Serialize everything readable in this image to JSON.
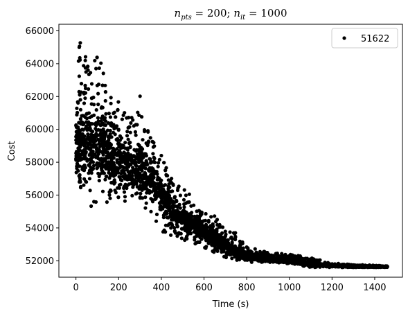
{
  "chart_data": {
    "type": "scatter",
    "title": "n_pts = 200; n_it = 1000",
    "title_parts": {
      "n": "n",
      "pts_sub": "pts",
      "eq1": " = 200; ",
      "it_sub": "it",
      "eq2": " = 1000"
    },
    "xlabel": "Time (s)",
    "ylabel": "Cost",
    "xlim": [
      -80,
      1530
    ],
    "ylim": [
      51000,
      66400
    ],
    "xticks": [
      0,
      200,
      400,
      600,
      800,
      1000,
      1200,
      1400
    ],
    "yticks": [
      52000,
      54000,
      56000,
      58000,
      60000,
      62000,
      64000,
      66000
    ],
    "grid": false,
    "legend": {
      "placement": "top-right",
      "entries": [
        {
          "label": "51622",
          "marker": "circle",
          "color": "#000000"
        }
      ]
    },
    "marker_color": "#000000",
    "envelope": [
      {
        "t": 0,
        "center": 59000,
        "low": 56800,
        "high": 62600
      },
      {
        "t": 20,
        "center": 59200,
        "low": 56000,
        "high": 65800
      },
      {
        "t": 50,
        "center": 59000,
        "low": 55900,
        "high": 64200
      },
      {
        "t": 80,
        "center": 59200,
        "low": 54500,
        "high": 64200
      },
      {
        "t": 110,
        "center": 59000,
        "low": 56800,
        "high": 64600
      },
      {
        "t": 150,
        "center": 58600,
        "low": 55300,
        "high": 62000
      },
      {
        "t": 200,
        "center": 58100,
        "low": 55800,
        "high": 61900
      },
      {
        "t": 250,
        "center": 57700,
        "low": 55000,
        "high": 60900
      },
      {
        "t": 300,
        "center": 57600,
        "low": 55400,
        "high": 62100
      },
      {
        "t": 350,
        "center": 57000,
        "low": 55000,
        "high": 59500
      },
      {
        "t": 400,
        "center": 56000,
        "low": 53800,
        "high": 58500
      },
      {
        "t": 450,
        "center": 55000,
        "low": 53500,
        "high": 57000
      },
      {
        "t": 500,
        "center": 54700,
        "low": 53300,
        "high": 56500
      },
      {
        "t": 550,
        "center": 54200,
        "low": 53000,
        "high": 55800
      },
      {
        "t": 600,
        "center": 53800,
        "low": 52800,
        "high": 55000
      },
      {
        "t": 650,
        "center": 53300,
        "low": 52300,
        "high": 54900
      },
      {
        "t": 700,
        "center": 52900,
        "low": 52200,
        "high": 54000
      },
      {
        "t": 750,
        "center": 52500,
        "low": 52000,
        "high": 53700
      },
      {
        "t": 800,
        "center": 52300,
        "low": 51900,
        "high": 52900
      },
      {
        "t": 900,
        "center": 52100,
        "low": 51900,
        "high": 52500
      },
      {
        "t": 1000,
        "center": 52000,
        "low": 51800,
        "high": 52400
      },
      {
        "t": 1100,
        "center": 51800,
        "low": 51600,
        "high": 52200
      },
      {
        "t": 1200,
        "center": 51700,
        "low": 51600,
        "high": 51850
      },
      {
        "t": 1300,
        "center": 51650,
        "low": 51600,
        "high": 51780
      },
      {
        "t": 1400,
        "center": 51640,
        "low": 51600,
        "high": 51720
      },
      {
        "t": 1460,
        "center": 51630,
        "low": 51600,
        "high": 51680
      }
    ],
    "x_max": 1460
  }
}
